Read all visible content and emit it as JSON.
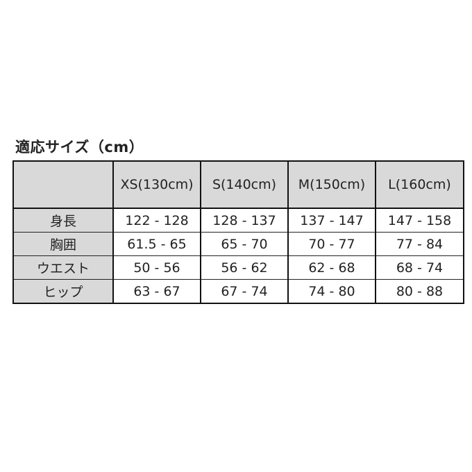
{
  "title": "適応サイズ（cm）",
  "table": {
    "header": [
      "",
      "XS(130cm)",
      "S(140cm)",
      "M(150cm)",
      "L(160cm)"
    ],
    "rows": [
      {
        "label": "身長",
        "values": [
          "122 - 128",
          "128 - 137",
          "137 - 147",
          "147 - 158"
        ]
      },
      {
        "label": "胸囲",
        "values": [
          "61.5 - 65",
          "65 - 70",
          "70 - 77",
          "77 - 84"
        ]
      },
      {
        "label": "ウエスト",
        "values": [
          "50 - 56",
          "56 - 62",
          "62 - 68",
          "68 - 74"
        ]
      },
      {
        "label": "ヒップ",
        "values": [
          "63 - 67",
          "67 - 74",
          "74 - 80",
          "80 - 88"
        ]
      }
    ]
  },
  "colors": {
    "header_bg": "#d9d9d9",
    "border": "#111111"
  }
}
